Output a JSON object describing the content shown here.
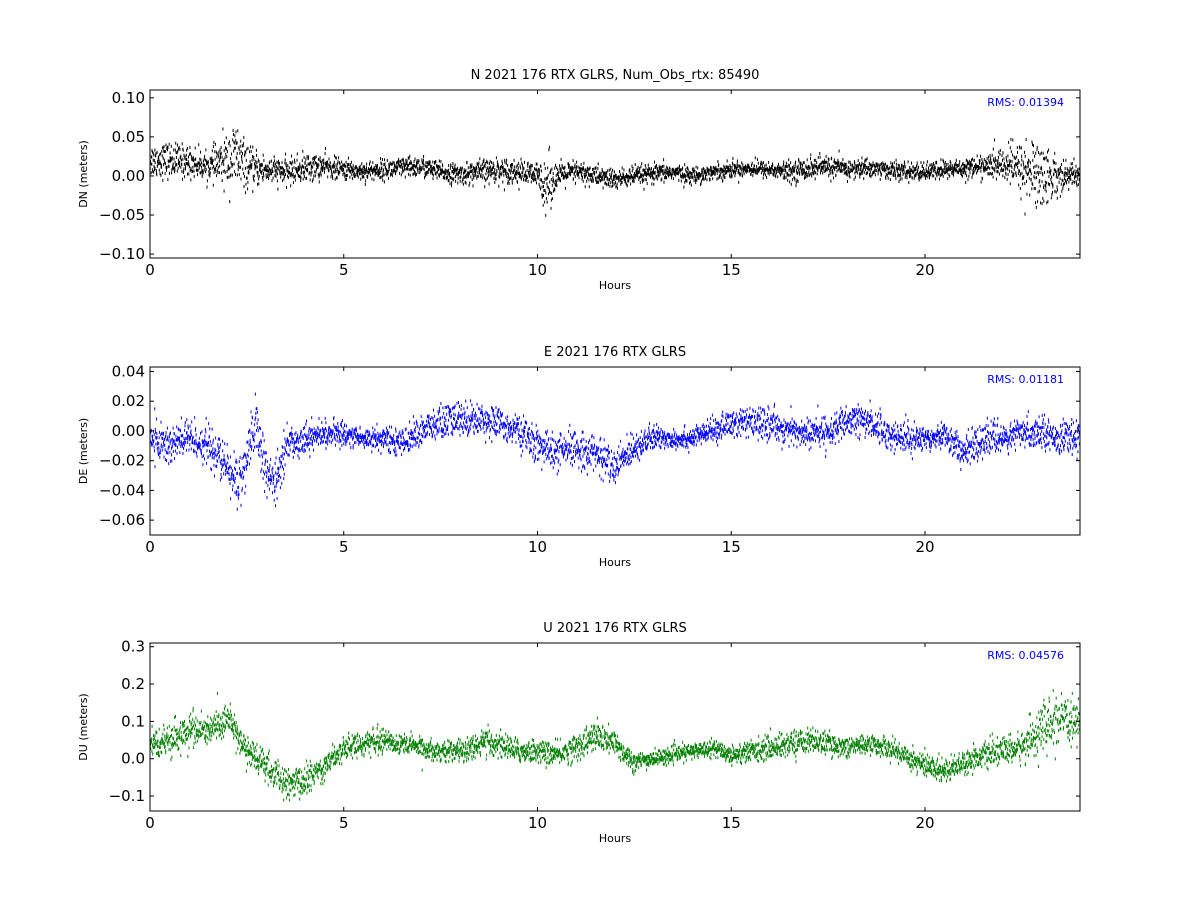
{
  "chart_data": [
    {
      "type": "scatter",
      "title": "N 2021 176 RTX  GLRS, Num_Obs_rtx: 85490",
      "xlabel": "Hours",
      "ylabel": "DN (meters)",
      "xlim": [
        0,
        24
      ],
      "ylim": [
        -0.105,
        0.11
      ],
      "xticks": [
        0,
        5,
        10,
        15,
        20
      ],
      "xtick_labels": [
        "0",
        "5",
        "10",
        "15",
        "20"
      ],
      "yticks": [
        0.1,
        0.05,
        0.0,
        -0.05,
        -0.1
      ],
      "ytick_labels": [
        "0.10",
        "0.05",
        "0.00",
        "−0.05",
        "−0.10"
      ],
      "color": "#000000",
      "annotation": "RMS:  0.01394",
      "annotation_color": "#0000ff",
      "grid": false,
      "series": [
        {
          "x": [
            0,
            0.5,
            1,
            1.5,
            2,
            2.25,
            2.5,
            3,
            3.5,
            4,
            4.5,
            5,
            5.5,
            6,
            6.5,
            7,
            7.5,
            8,
            8.5,
            9,
            9.5,
            10,
            10.25,
            10.5,
            11,
            11.5,
            12,
            12.5,
            13,
            13.5,
            14,
            14.5,
            15,
            15.5,
            16,
            16.5,
            17,
            17.5,
            18,
            18.5,
            19,
            19.5,
            20,
            20.5,
            21,
            21.5,
            22,
            22.5,
            23,
            23.5,
            24
          ],
          "center": [
            0.02,
            0.02,
            0.018,
            0.012,
            0.02,
            0.025,
            0.01,
            0.008,
            0.005,
            0.01,
            0.012,
            0.008,
            0.006,
            0.008,
            0.01,
            0.012,
            0.005,
            0.002,
            0.005,
            0.008,
            0.005,
            0.0,
            -0.01,
            0.0,
            0.005,
            0.0,
            -0.005,
            0.0,
            0.002,
            0.005,
            0.0,
            0.005,
            0.008,
            0.01,
            0.008,
            0.005,
            0.01,
            0.012,
            0.008,
            0.01,
            0.008,
            0.005,
            0.005,
            0.008,
            0.01,
            0.012,
            0.015,
            0.01,
            0.0,
            0.0,
            0.002
          ],
          "spread": [
            0.02,
            0.022,
            0.02,
            0.015,
            0.035,
            0.045,
            0.025,
            0.018,
            0.015,
            0.018,
            0.015,
            0.012,
            0.012,
            0.012,
            0.013,
            0.013,
            0.012,
            0.012,
            0.015,
            0.015,
            0.015,
            0.015,
            0.04,
            0.015,
            0.014,
            0.013,
            0.013,
            0.012,
            0.012,
            0.01,
            0.01,
            0.01,
            0.01,
            0.01,
            0.01,
            0.012,
            0.014,
            0.013,
            0.012,
            0.012,
            0.011,
            0.011,
            0.011,
            0.012,
            0.012,
            0.013,
            0.02,
            0.035,
            0.045,
            0.02,
            0.015
          ]
        }
      ]
    },
    {
      "type": "scatter",
      "title": "E 2021 176 RTX  GLRS",
      "xlabel": "Hours",
      "ylabel": "DE (meters)",
      "xlim": [
        0,
        24
      ],
      "ylim": [
        -0.07,
        0.043
      ],
      "xticks": [
        0,
        5,
        10,
        15,
        20
      ],
      "xtick_labels": [
        "0",
        "5",
        "10",
        "15",
        "20"
      ],
      "yticks": [
        0.04,
        0.02,
        0.0,
        -0.02,
        -0.04,
        -0.06
      ],
      "ytick_labels": [
        "0.04",
        "0.02",
        "0.00",
        "−0.02",
        "−0.04",
        "−0.06"
      ],
      "color": "#0000ff",
      "annotation": "RMS:  0.01181",
      "annotation_color": "#0000ff",
      "grid": false,
      "series": [
        {
          "x": [
            0,
            0.5,
            1,
            1.5,
            2,
            2.25,
            2.5,
            2.75,
            3,
            3.25,
            3.5,
            4,
            4.5,
            5,
            5.5,
            6,
            6.5,
            7,
            7.5,
            8,
            8.5,
            9,
            9.5,
            10,
            10.5,
            11,
            11.5,
            12,
            12.5,
            13,
            13.5,
            14,
            14.5,
            15,
            15.5,
            16,
            16.5,
            17,
            17.5,
            18,
            18.5,
            19,
            19.5,
            20,
            20.5,
            21,
            21.5,
            22,
            22.5,
            23,
            23.5,
            24
          ],
          "center": [
            -0.005,
            -0.01,
            -0.005,
            -0.01,
            -0.025,
            -0.035,
            -0.02,
            0.005,
            -0.03,
            -0.035,
            -0.01,
            -0.005,
            -0.002,
            -0.002,
            -0.005,
            -0.005,
            -0.008,
            0.0,
            0.005,
            0.008,
            0.008,
            0.005,
            0.0,
            -0.01,
            -0.015,
            -0.012,
            -0.015,
            -0.025,
            -0.01,
            -0.005,
            -0.005,
            -0.005,
            0.0,
            0.005,
            0.005,
            0.005,
            0.0,
            -0.002,
            0.0,
            0.005,
            0.008,
            -0.002,
            -0.005,
            -0.005,
            -0.002,
            -0.015,
            -0.005,
            -0.005,
            -0.002,
            0.0,
            -0.005,
            -0.005
          ],
          "spread": [
            0.012,
            0.015,
            0.013,
            0.012,
            0.015,
            0.02,
            0.015,
            0.02,
            0.015,
            0.015,
            0.012,
            0.01,
            0.008,
            0.008,
            0.007,
            0.008,
            0.008,
            0.01,
            0.012,
            0.012,
            0.01,
            0.01,
            0.01,
            0.012,
            0.012,
            0.012,
            0.012,
            0.012,
            0.01,
            0.008,
            0.007,
            0.007,
            0.007,
            0.01,
            0.01,
            0.01,
            0.01,
            0.01,
            0.01,
            0.01,
            0.012,
            0.01,
            0.01,
            0.008,
            0.008,
            0.012,
            0.01,
            0.01,
            0.01,
            0.01,
            0.01,
            0.01
          ]
        }
      ]
    },
    {
      "type": "scatter",
      "title": "U 2021 176 RTX  GLRS",
      "xlabel": "Hours",
      "ylabel": "DU (meters)",
      "xlim": [
        0,
        24
      ],
      "ylim": [
        -0.14,
        0.31
      ],
      "xticks": [
        0,
        5,
        10,
        15,
        20
      ],
      "xtick_labels": [
        "0",
        "5",
        "10",
        "15",
        "20"
      ],
      "yticks": [
        0.3,
        0.2,
        0.1,
        0.0,
        -0.1
      ],
      "ytick_labels": [
        "0.3",
        "0.2",
        "0.1",
        "0.0",
        "−0.1"
      ],
      "color": "#008000",
      "annotation": "RMS:  0.04576",
      "annotation_color": "#0000ff",
      "grid": false,
      "series": [
        {
          "x": [
            0,
            0.5,
            1,
            1.5,
            2,
            2.5,
            3,
            3.5,
            4,
            4.5,
            5,
            5.5,
            6,
            6.5,
            7,
            7.5,
            8,
            8.5,
            9,
            9.5,
            10,
            10.5,
            11,
            11.5,
            12,
            12.5,
            13,
            13.5,
            14,
            14.5,
            15,
            15.5,
            16,
            16.5,
            17,
            17.5,
            18,
            18.5,
            19,
            19.5,
            20,
            20.5,
            21,
            21.5,
            22,
            22.5,
            23,
            23.5,
            24
          ],
          "center": [
            0.05,
            0.04,
            0.08,
            0.07,
            0.11,
            0.02,
            -0.02,
            -0.07,
            -0.06,
            -0.02,
            0.03,
            0.04,
            0.05,
            0.04,
            0.03,
            0.02,
            0.02,
            0.04,
            0.04,
            0.02,
            0.02,
            0.01,
            0.03,
            0.06,
            0.04,
            -0.01,
            0.0,
            0.01,
            0.02,
            0.03,
            0.01,
            0.02,
            0.03,
            0.04,
            0.05,
            0.04,
            0.03,
            0.04,
            0.03,
            0.01,
            -0.02,
            -0.03,
            -0.01,
            0.01,
            0.02,
            0.03,
            0.08,
            0.1,
            0.1
          ],
          "spread": [
            0.04,
            0.04,
            0.05,
            0.04,
            0.04,
            0.04,
            0.04,
            0.04,
            0.04,
            0.035,
            0.03,
            0.03,
            0.03,
            0.03,
            0.025,
            0.025,
            0.03,
            0.035,
            0.035,
            0.03,
            0.03,
            0.03,
            0.035,
            0.04,
            0.035,
            0.025,
            0.02,
            0.02,
            0.02,
            0.02,
            0.025,
            0.03,
            0.03,
            0.035,
            0.03,
            0.03,
            0.025,
            0.025,
            0.025,
            0.03,
            0.035,
            0.03,
            0.03,
            0.03,
            0.035,
            0.04,
            0.07,
            0.06,
            0.05
          ]
        }
      ]
    }
  ]
}
